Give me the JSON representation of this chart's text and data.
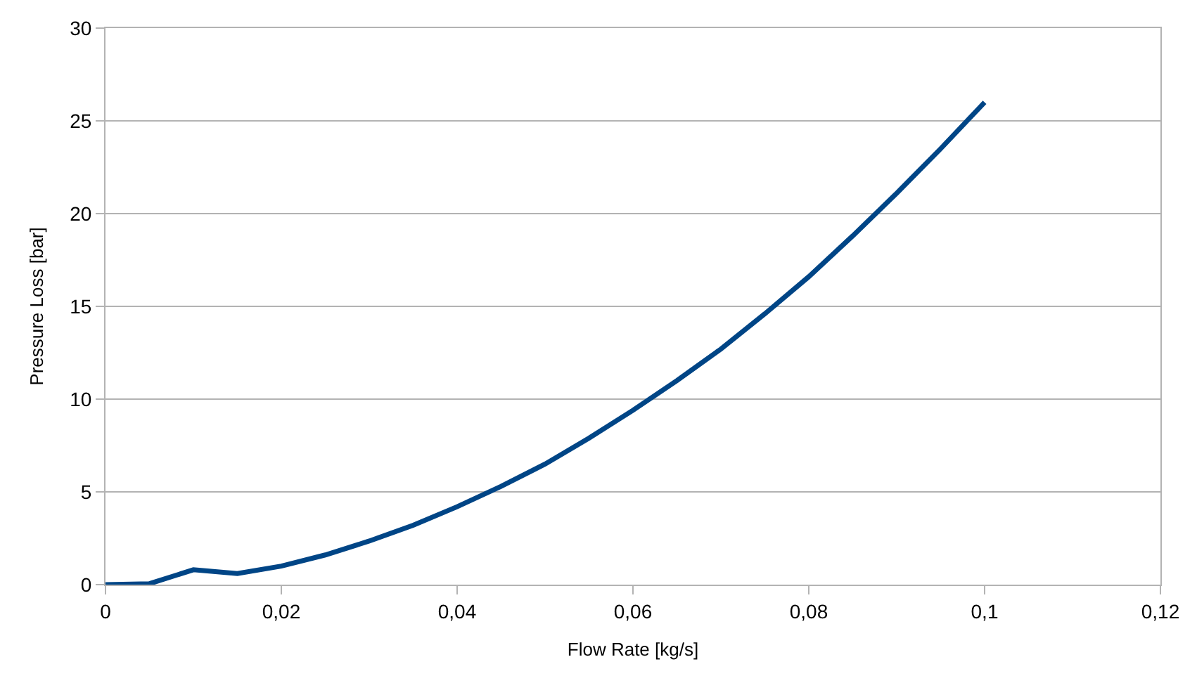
{
  "chart_data": {
    "type": "line",
    "xlabel": "Flow Rate [kg/s]",
    "ylabel": "Pressure Loss [bar]",
    "x": [
      0,
      0.005,
      0.01,
      0.015,
      0.02,
      0.025,
      0.03,
      0.035,
      0.04,
      0.045,
      0.05,
      0.055,
      0.06,
      0.065,
      0.07,
      0.075,
      0.08,
      0.085,
      0.09,
      0.095,
      0.1
    ],
    "series": [
      {
        "color": "#004586",
        "values": [
          0,
          0.05,
          0.8,
          0.6,
          1.0,
          1.6,
          2.35,
          3.2,
          4.2,
          5.3,
          6.5,
          7.9,
          9.4,
          11.0,
          12.7,
          14.6,
          16.6,
          18.8,
          21.1,
          23.5,
          26.0
        ]
      }
    ],
    "xlim": [
      0,
      0.12
    ],
    "xticks": [
      0,
      {
        "value": 0.02,
        "label": "0,02"
      },
      {
        "value": 0.04,
        "label": "0,04"
      },
      {
        "value": 0.06,
        "label": "0,06"
      },
      {
        "value": 0.08,
        "label": "0,08"
      },
      {
        "value": 0.1,
        "label": "0,1"
      },
      {
        "value": 0.12,
        "label": "0,12"
      }
    ],
    "ylim": [
      0,
      30
    ],
    "yticks": [
      0,
      5,
      10,
      15,
      20,
      25,
      30
    ],
    "grid": "y",
    "marker": "none",
    "line_style": "solid"
  }
}
